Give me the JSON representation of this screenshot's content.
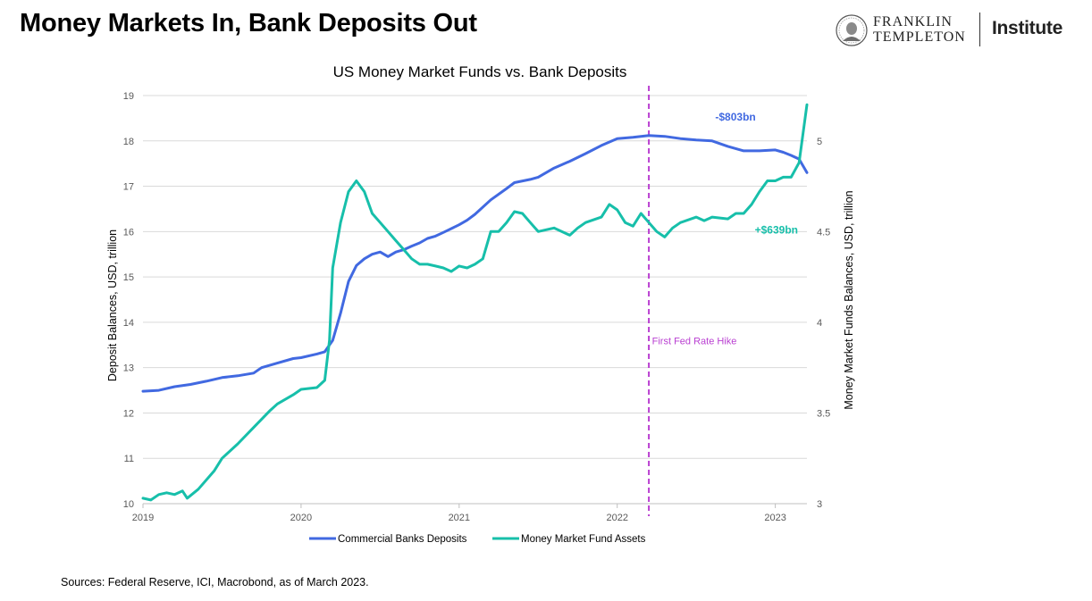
{
  "page_title": "Money Markets In, Bank Deposits Out",
  "brand": {
    "line1": "FRANKLIN",
    "line2": "TEMPLETON",
    "product": "Institute"
  },
  "source": "Sources: Federal Reserve, ICI, Macrobond, as of March 2023.",
  "colors": {
    "deposits": "#4169E1",
    "mmf": "#17BFAA",
    "hike": "#B93FD1",
    "grid": "#d9d9d9",
    "axis": "#595959"
  },
  "chart_data": {
    "type": "line",
    "title": "US Money Market Funds vs. Bank Deposits",
    "xlabel": "",
    "x_ticks": [
      "2019",
      "2020",
      "2021",
      "2022",
      "2023"
    ],
    "x_range": [
      2019.0,
      2023.2
    ],
    "y_left": {
      "label": "Deposit Balances, USD, trillion",
      "ylim": [
        10,
        19
      ],
      "ticks": [
        "10",
        "11",
        "12",
        "13",
        "14",
        "15",
        "16",
        "17",
        "18",
        "19"
      ]
    },
    "y_right": {
      "label": "Money Market Funds Balances, USD, trillion",
      "ylim": [
        3,
        5.25
      ],
      "ticks": [
        "3",
        "3.5",
        "4",
        "4.5",
        "5"
      ]
    },
    "grid": true,
    "legend_position": "bottom",
    "series": [
      {
        "name": "Commercial Banks Deposits",
        "axis": "left",
        "points": [
          [
            2019.0,
            12.48
          ],
          [
            2019.1,
            12.5
          ],
          [
            2019.2,
            12.58
          ],
          [
            2019.3,
            12.63
          ],
          [
            2019.4,
            12.7
          ],
          [
            2019.5,
            12.78
          ],
          [
            2019.6,
            12.82
          ],
          [
            2019.7,
            12.88
          ],
          [
            2019.75,
            13.0
          ],
          [
            2019.85,
            13.1
          ],
          [
            2019.95,
            13.2
          ],
          [
            2020.0,
            13.22
          ],
          [
            2020.1,
            13.3
          ],
          [
            2020.15,
            13.35
          ],
          [
            2020.2,
            13.6
          ],
          [
            2020.25,
            14.2
          ],
          [
            2020.3,
            14.9
          ],
          [
            2020.35,
            15.25
          ],
          [
            2020.4,
            15.4
          ],
          [
            2020.45,
            15.5
          ],
          [
            2020.5,
            15.55
          ],
          [
            2020.55,
            15.45
          ],
          [
            2020.6,
            15.55
          ],
          [
            2020.65,
            15.6
          ],
          [
            2020.7,
            15.68
          ],
          [
            2020.75,
            15.75
          ],
          [
            2020.8,
            15.85
          ],
          [
            2020.85,
            15.9
          ],
          [
            2020.9,
            15.98
          ],
          [
            2021.0,
            16.15
          ],
          [
            2021.05,
            16.25
          ],
          [
            2021.1,
            16.38
          ],
          [
            2021.2,
            16.7
          ],
          [
            2021.3,
            16.95
          ],
          [
            2021.35,
            17.08
          ],
          [
            2021.45,
            17.15
          ],
          [
            2021.5,
            17.2
          ],
          [
            2021.6,
            17.4
          ],
          [
            2021.7,
            17.55
          ],
          [
            2021.8,
            17.72
          ],
          [
            2021.9,
            17.9
          ],
          [
            2022.0,
            18.05
          ],
          [
            2022.1,
            18.08
          ],
          [
            2022.2,
            18.12
          ],
          [
            2022.3,
            18.1
          ],
          [
            2022.4,
            18.05
          ],
          [
            2022.5,
            18.02
          ],
          [
            2022.6,
            18.0
          ],
          [
            2022.7,
            17.88
          ],
          [
            2022.8,
            17.78
          ],
          [
            2022.9,
            17.78
          ],
          [
            2023.0,
            17.8
          ],
          [
            2023.05,
            17.75
          ],
          [
            2023.1,
            17.68
          ],
          [
            2023.15,
            17.6
          ],
          [
            2023.2,
            17.3
          ]
        ]
      },
      {
        "name": "Money Market Fund Assets",
        "axis": "right",
        "points": [
          [
            2019.0,
            3.03
          ],
          [
            2019.05,
            3.02
          ],
          [
            2019.1,
            3.05
          ],
          [
            2019.15,
            3.06
          ],
          [
            2019.2,
            3.05
          ],
          [
            2019.25,
            3.07
          ],
          [
            2019.28,
            3.03
          ],
          [
            2019.35,
            3.08
          ],
          [
            2019.45,
            3.18
          ],
          [
            2019.5,
            3.25
          ],
          [
            2019.6,
            3.33
          ],
          [
            2019.7,
            3.42
          ],
          [
            2019.8,
            3.51
          ],
          [
            2019.85,
            3.55
          ],
          [
            2019.95,
            3.6
          ],
          [
            2020.0,
            3.63
          ],
          [
            2020.1,
            3.64
          ],
          [
            2020.15,
            3.68
          ],
          [
            2020.18,
            3.9
          ],
          [
            2020.2,
            4.3
          ],
          [
            2020.25,
            4.55
          ],
          [
            2020.3,
            4.72
          ],
          [
            2020.35,
            4.78
          ],
          [
            2020.4,
            4.72
          ],
          [
            2020.45,
            4.6
          ],
          [
            2020.5,
            4.55
          ],
          [
            2020.55,
            4.5
          ],
          [
            2020.6,
            4.45
          ],
          [
            2020.65,
            4.4
          ],
          [
            2020.7,
            4.35
          ],
          [
            2020.75,
            4.32
          ],
          [
            2020.8,
            4.32
          ],
          [
            2020.85,
            4.31
          ],
          [
            2020.9,
            4.3
          ],
          [
            2020.95,
            4.28
          ],
          [
            2021.0,
            4.31
          ],
          [
            2021.05,
            4.3
          ],
          [
            2021.1,
            4.32
          ],
          [
            2021.15,
            4.35
          ],
          [
            2021.2,
            4.5
          ],
          [
            2021.25,
            4.5
          ],
          [
            2021.3,
            4.55
          ],
          [
            2021.35,
            4.61
          ],
          [
            2021.4,
            4.6
          ],
          [
            2021.45,
            4.55
          ],
          [
            2021.5,
            4.5
          ],
          [
            2021.6,
            4.52
          ],
          [
            2021.7,
            4.48
          ],
          [
            2021.75,
            4.52
          ],
          [
            2021.8,
            4.55
          ],
          [
            2021.9,
            4.58
          ],
          [
            2021.95,
            4.65
          ],
          [
            2022.0,
            4.62
          ],
          [
            2022.05,
            4.55
          ],
          [
            2022.1,
            4.53
          ],
          [
            2022.15,
            4.6
          ],
          [
            2022.2,
            4.55
          ],
          [
            2022.25,
            4.5
          ],
          [
            2022.3,
            4.47
          ],
          [
            2022.35,
            4.52
          ],
          [
            2022.4,
            4.55
          ],
          [
            2022.5,
            4.58
          ],
          [
            2022.55,
            4.56
          ],
          [
            2022.6,
            4.58
          ],
          [
            2022.7,
            4.57
          ],
          [
            2022.75,
            4.6
          ],
          [
            2022.8,
            4.6
          ],
          [
            2022.85,
            4.65
          ],
          [
            2022.9,
            4.72
          ],
          [
            2022.95,
            4.78
          ],
          [
            2023.0,
            4.78
          ],
          [
            2023.05,
            4.8
          ],
          [
            2023.1,
            4.8
          ],
          [
            2023.15,
            4.88
          ],
          [
            2023.2,
            5.2
          ]
        ]
      }
    ],
    "annotations": [
      {
        "text": "-$803bn",
        "series": "Commercial Banks Deposits",
        "x": 2022.62,
        "y": 18.45,
        "axis": "left"
      },
      {
        "text": "+$639bn",
        "series": "Money Market Fund Assets",
        "x": 2022.87,
        "y": 4.49,
        "axis": "right"
      },
      {
        "text": "First Fed Rate Hike",
        "x": 2022.22,
        "y": 3.88,
        "axis": "right",
        "vline_x": 2022.2
      }
    ]
  }
}
